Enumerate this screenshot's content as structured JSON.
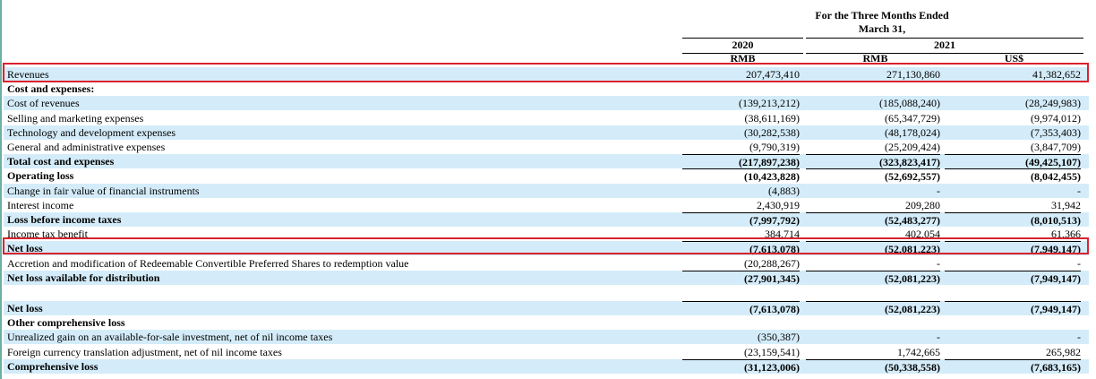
{
  "header": {
    "title_lines": [
      "For the Three Months Ended",
      "March 31,"
    ],
    "years": [
      "2020",
      "2021"
    ],
    "currencies": [
      "RMB",
      "RMB",
      "US$"
    ]
  },
  "rows": [
    {
      "label": "Revenues",
      "values": [
        "207,473,410",
        "271,130,860",
        "41,382,652"
      ],
      "bold": false
    },
    {
      "label": "Cost and expenses:",
      "values": [],
      "bold": true
    },
    {
      "label": "Cost of revenues",
      "values": [
        "(139,213,212)",
        "(185,088,240)",
        "(28,249,983)"
      ],
      "bold": false
    },
    {
      "label": "Selling and marketing expenses",
      "values": [
        "(38,611,169)",
        "(65,347,729)",
        "(9,974,012)"
      ],
      "bold": false
    },
    {
      "label": "Technology and development expenses",
      "values": [
        "(30,282,538)",
        "(48,178,024)",
        "(7,353,403)"
      ],
      "bold": false
    },
    {
      "label": "General and administrative expenses",
      "values": [
        "(9,790,319)",
        "(25,209,424)",
        "(3,847,709)"
      ],
      "bold": false
    },
    {
      "label": "Total cost and expenses",
      "values": [
        "(217,897,238)",
        "(323,823,417)",
        "(49,425,107)"
      ],
      "bold": true
    },
    {
      "label": "Operating loss",
      "values": [
        "(10,423,828)",
        "(52,692,557)",
        "(8,042,455)"
      ],
      "bold": true
    },
    {
      "label": "Change in fair value of financial instruments",
      "values": [
        "(4,883)",
        "-",
        "-"
      ],
      "bold": false
    },
    {
      "label": "Interest income",
      "values": [
        "2,430,919",
        "209,280",
        "31,942"
      ],
      "bold": false
    },
    {
      "label": "Loss before income taxes",
      "values": [
        "(7,997,792)",
        "(52,483,277)",
        "(8,010,513)"
      ],
      "bold": true
    },
    {
      "label": "Income tax benefit",
      "values": [
        "384,714",
        "402,054",
        "61,366"
      ],
      "bold": false
    },
    {
      "label": "Net loss",
      "values": [
        "(7,613,078)",
        "(52,081,223)",
        "(7,949,147)"
      ],
      "bold": true
    },
    {
      "label": "Accretion and modification of Redeemable Convertible Preferred  Shares to redemption value",
      "values": [
        "(20,288,267)",
        "-",
        "-"
      ],
      "bold": false
    },
    {
      "label": "Net loss available for distribution",
      "values": [
        "(27,901,345)",
        "(52,081,223)",
        "(7,949,147)"
      ],
      "bold": true
    }
  ],
  "comprehensive_rows": [
    {
      "label": "Net loss",
      "values": [
        "(7,613,078)",
        "(52,081,223)",
        "(7,949,147)"
      ],
      "bold": true
    },
    {
      "label": "Other comprehensive loss",
      "values": [],
      "bold": true
    },
    {
      "label": "Unrealized gain on an available-for-sale investment, net of nil income taxes",
      "values": [
        "(350,387)",
        "-",
        "-"
      ],
      "bold": false
    },
    {
      "label": "Foreign currency translation adjustment, net of nil income taxes",
      "values": [
        "(23,159,541)",
        "1,742,665",
        "265,982"
      ],
      "bold": false
    },
    {
      "label": "Comprehensive loss",
      "values": [
        "(31,123,006)",
        "(50,338,558)",
        "(7,683,165)"
      ],
      "bold": true
    }
  ]
}
